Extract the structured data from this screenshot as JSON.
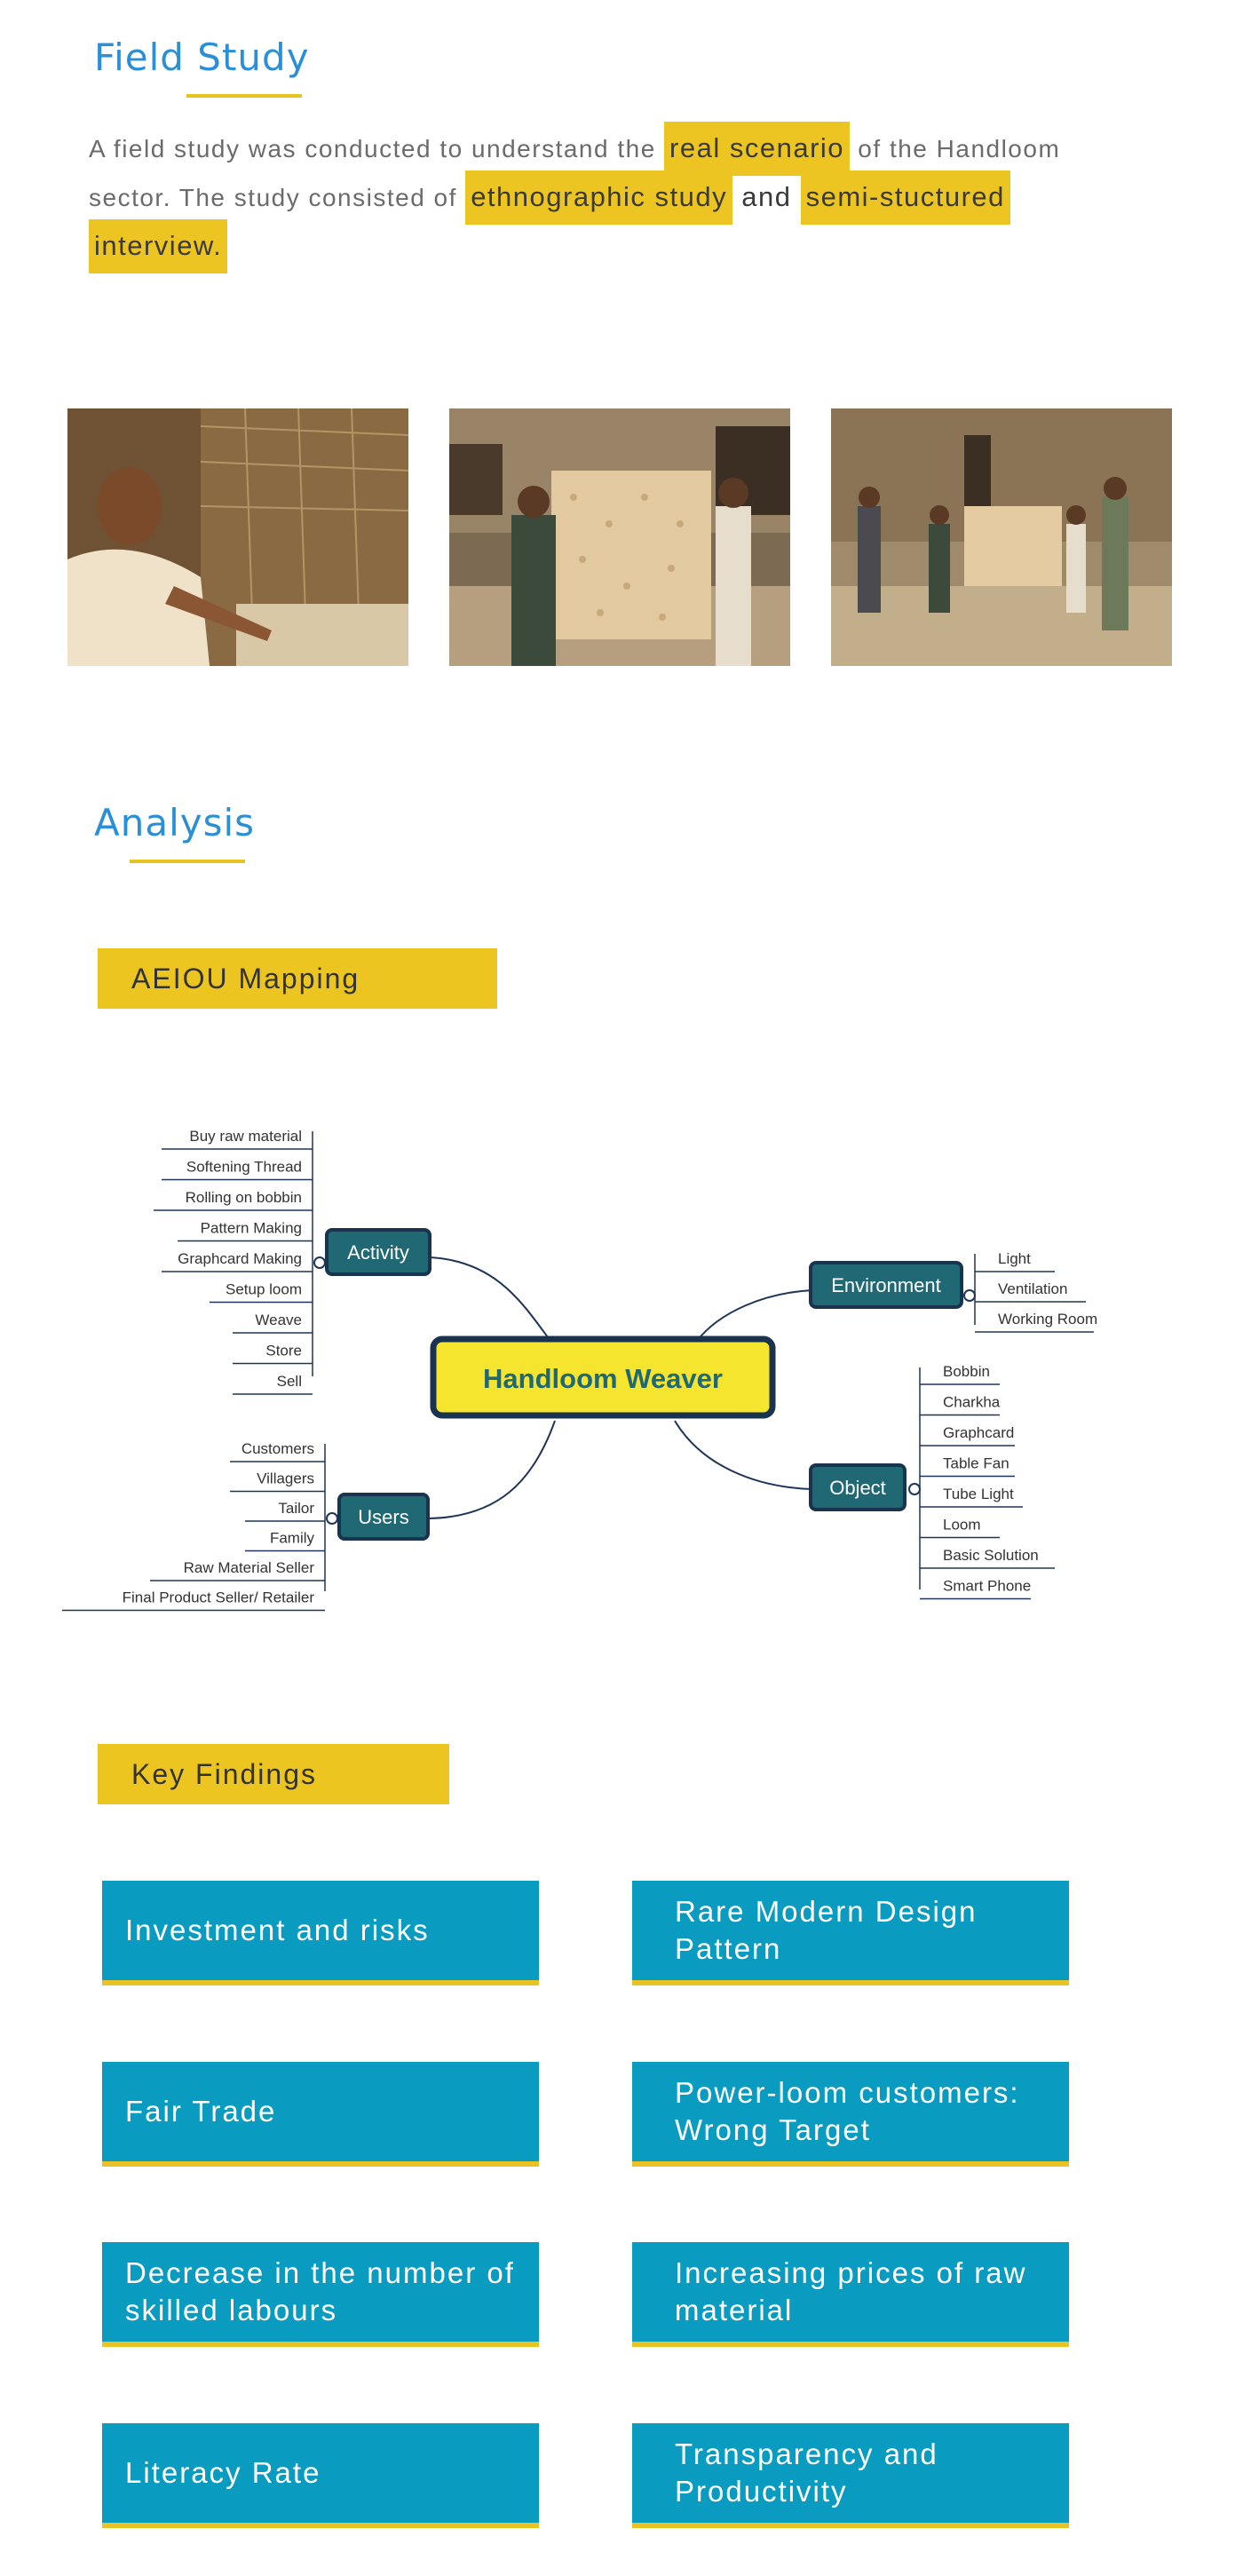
{
  "field_study": {
    "title": "Field Study",
    "intro": {
      "t1": "A field study was conducted to understand the ",
      "h1": "real scenario",
      "t2": " of the Handloom sector. The study consisted of ",
      "h2": "ethnographic study",
      "t3": " and ",
      "h3": "semi-stuctured interview."
    },
    "photos": [
      "weaver-at-loom-photo",
      "women-holding-woven-fabric-photo",
      "group-with-woven-fabric-photo"
    ]
  },
  "analysis": {
    "title": "Analysis",
    "aeiou_banner": "AEIOU Mapping",
    "mindmap": {
      "center": "Handloom Weaver",
      "activity": {
        "label": "Activity",
        "items": [
          "Buy raw material",
          "Softening Thread",
          "Rolling on bobbin",
          "Pattern Making",
          "Graphcard Making",
          "Setup loom",
          "Weave",
          "Store",
          "Sell"
        ]
      },
      "users": {
        "label": "Users",
        "items": [
          "Customers",
          "Villagers",
          "Tailor",
          "Family",
          "Raw Material Seller",
          "Final Product Seller/ Retailer"
        ]
      },
      "environment": {
        "label": "Environment",
        "items": [
          "Light",
          "Ventilation",
          "Working Room"
        ]
      },
      "object": {
        "label": "Object",
        "items": [
          "Bobbin",
          "Charkha",
          "Graphcard",
          "Table Fan",
          "Tube Light",
          "Loom",
          "Basic Solution",
          "Smart Phone"
        ]
      }
    },
    "key_findings_banner": "Key Findings",
    "findings": [
      "Investment and risks",
      "Rare Modern Design Pattern",
      "Fair Trade",
      "Power-loom customers: Wrong Target",
      "Decrease in the number of skilled labours",
      "Increasing prices of raw material",
      "Literacy Rate",
      "Transparency and Productivity"
    ]
  },
  "colors": {
    "title_blue": "#2a8fd6",
    "accent_yellow": "#ecc521",
    "node_teal": "#1f6874",
    "finding_blue": "#0a9bc0",
    "center_yellow": "#f5e52e",
    "line_navy": "#1f3557"
  }
}
